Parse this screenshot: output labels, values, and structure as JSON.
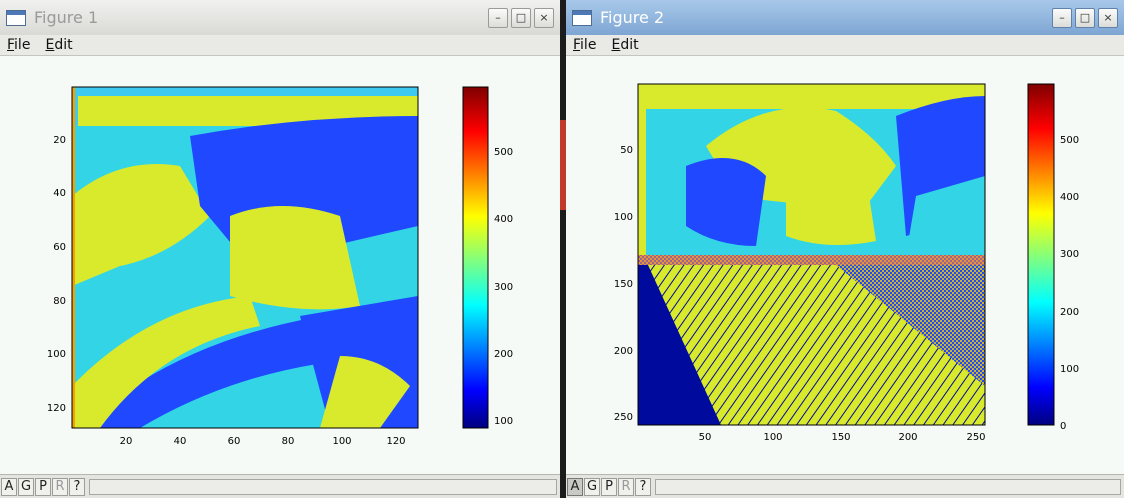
{
  "windows": [
    {
      "title": "Figure 1",
      "menu": [
        {
          "label": "File",
          "key": "F",
          "rest": "ile"
        },
        {
          "label": "Edit",
          "key": "E",
          "rest": "dit"
        }
      ],
      "controls": [
        "–",
        "□",
        "×"
      ],
      "toolbar": [
        "A",
        "G",
        "P",
        "R",
        "?"
      ],
      "plot": {
        "yticks": [
          "20",
          "40",
          "60",
          "80",
          "100",
          "120"
        ],
        "xticks": [
          "20",
          "40",
          "60",
          "80",
          "100",
          "120"
        ],
        "colorbar_ticks": [
          "100",
          "200",
          "300",
          "400",
          "500"
        ]
      }
    },
    {
      "title": "Figure 2",
      "menu": [
        {
          "label": "File",
          "key": "F",
          "rest": "ile"
        },
        {
          "label": "Edit",
          "key": "E",
          "rest": "dit"
        }
      ],
      "controls": [
        "–",
        "□",
        "×"
      ],
      "toolbar": [
        "A",
        "G",
        "P",
        "R",
        "?"
      ],
      "plot": {
        "yticks": [
          "50",
          "100",
          "150",
          "200",
          "250"
        ],
        "xticks": [
          "50",
          "100",
          "150",
          "200",
          "250"
        ],
        "colorbar_ticks": [
          "0",
          "100",
          "200",
          "300",
          "400",
          "500"
        ]
      }
    }
  ],
  "colors": {
    "jet_dark_blue": "#00007f",
    "jet_blue": "#0000ff",
    "jet_cyan": "#00ffff",
    "jet_yellow": "#ffff00",
    "jet_red": "#ff0000",
    "jet_dark_red": "#7f0000",
    "image_cyan": "#33d4e6",
    "image_yellow": "#d9ea2d",
    "image_blue": "#1f48ff",
    "image_navy": "#000a9c"
  }
}
